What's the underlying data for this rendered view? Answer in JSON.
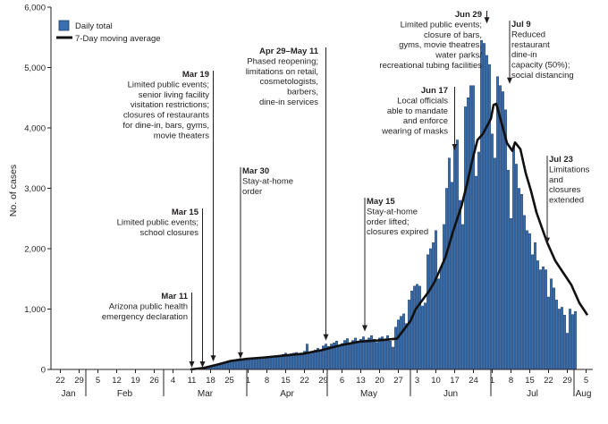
{
  "chart_data": {
    "type": "bar",
    "ylabel": "No. of cases",
    "ylim": [
      0,
      6000
    ],
    "yticks": [
      "0",
      "1,000",
      "2,000",
      "3,000",
      "4,000",
      "5,000",
      "6,000"
    ],
    "ytick_values": [
      0,
      1000,
      2000,
      3000,
      4000,
      5000,
      6000
    ],
    "x_start": "2020-01-19",
    "x_end": "2020-08-08",
    "xticks": [
      {
        "label": "22",
        "date": "2020-01-22"
      },
      {
        "label": "29",
        "date": "2020-01-29"
      },
      {
        "label": "5",
        "date": "2020-02-05"
      },
      {
        "label": "12",
        "date": "2020-02-12"
      },
      {
        "label": "19",
        "date": "2020-02-19"
      },
      {
        "label": "26",
        "date": "2020-02-26"
      },
      {
        "label": "4",
        "date": "2020-03-04"
      },
      {
        "label": "11",
        "date": "2020-03-11"
      },
      {
        "label": "18",
        "date": "2020-03-18"
      },
      {
        "label": "25",
        "date": "2020-03-25"
      },
      {
        "label": "1",
        "date": "2020-04-01"
      },
      {
        "label": "8",
        "date": "2020-04-08"
      },
      {
        "label": "15",
        "date": "2020-04-15"
      },
      {
        "label": "22",
        "date": "2020-04-22"
      },
      {
        "label": "29",
        "date": "2020-04-29"
      },
      {
        "label": "6",
        "date": "2020-05-06"
      },
      {
        "label": "13",
        "date": "2020-05-13"
      },
      {
        "label": "20",
        "date": "2020-05-20"
      },
      {
        "label": "27",
        "date": "2020-05-27"
      },
      {
        "label": "3",
        "date": "2020-06-03"
      },
      {
        "label": "10",
        "date": "2020-06-10"
      },
      {
        "label": "17",
        "date": "2020-06-17"
      },
      {
        "label": "24",
        "date": "2020-06-24"
      },
      {
        "label": "1",
        "date": "2020-07-01"
      },
      {
        "label": "8",
        "date": "2020-07-08"
      },
      {
        "label": "15",
        "date": "2020-07-15"
      },
      {
        "label": "22",
        "date": "2020-07-22"
      },
      {
        "label": "29",
        "date": "2020-07-29"
      },
      {
        "label": "5",
        "date": "2020-08-05"
      }
    ],
    "months": [
      {
        "label": "Jan",
        "start": "2020-01-19",
        "end": "2020-02-01"
      },
      {
        "label": "Feb",
        "start": "2020-02-01",
        "end": "2020-03-01"
      },
      {
        "label": "Mar",
        "start": "2020-03-01",
        "end": "2020-04-01"
      },
      {
        "label": "Apr",
        "start": "2020-04-01",
        "end": "2020-05-01"
      },
      {
        "label": "May",
        "start": "2020-05-01",
        "end": "2020-06-01"
      },
      {
        "label": "Jun",
        "start": "2020-06-01",
        "end": "2020-07-01"
      },
      {
        "label": "Jul",
        "start": "2020-07-01",
        "end": "2020-08-01"
      },
      {
        "label": "Aug",
        "start": "2020-08-01",
        "end": "2020-08-08"
      }
    ],
    "legend": {
      "bars": "Daily total",
      "line": "7-Day moving average"
    },
    "series": [
      {
        "name": "Daily total",
        "type": "bar",
        "start_date": "2020-03-11",
        "values": [
          2,
          3,
          5,
          6,
          10,
          18,
          25,
          40,
          55,
          65,
          75,
          90,
          110,
          130,
          140,
          150,
          160,
          170,
          180,
          150,
          160,
          170,
          180,
          190,
          170,
          180,
          200,
          210,
          190,
          200,
          210,
          220,
          200,
          230,
          250,
          270,
          240,
          260,
          270,
          280,
          250,
          270,
          300,
          420,
          260,
          290,
          320,
          350,
          300,
          390,
          420,
          380,
          420,
          440,
          470,
          390,
          430,
          480,
          510,
          430,
          480,
          520,
          470,
          500,
          540,
          490,
          520,
          560,
          500,
          450,
          520,
          540,
          480,
          560,
          470,
          370,
          700,
          820,
          880,
          920,
          760,
          1150,
          1300,
          1380,
          1410,
          1380,
          1050,
          1100,
          1900,
          2000,
          2100,
          2300,
          1500,
          1700,
          2400,
          3000,
          3500,
          3100,
          3700,
          3800,
          2800,
          2400,
          4350,
          4500,
          4700,
          4700,
          3200,
          3600,
          5450,
          5400,
          5200,
          5050,
          3900,
          3500,
          4850,
          4700,
          4600,
          4300,
          3300,
          2500,
          3700,
          3400,
          3000,
          2900,
          2550,
          2300,
          2250,
          1900,
          2100,
          1800,
          1650,
          1700,
          1650,
          1200,
          1500,
          1350,
          1150,
          1000,
          1030,
          900,
          600,
          1000,
          910,
          960
        ]
      },
      {
        "name": "7-Day moving average",
        "type": "line",
        "points": [
          [
            "2020-03-11",
            0
          ],
          [
            "2020-03-16",
            25
          ],
          [
            "2020-03-21",
            80
          ],
          [
            "2020-03-26",
            140
          ],
          [
            "2020-04-01",
            175
          ],
          [
            "2020-04-08",
            200
          ],
          [
            "2020-04-15",
            230
          ],
          [
            "2020-04-22",
            260
          ],
          [
            "2020-04-29",
            320
          ],
          [
            "2020-05-06",
            400
          ],
          [
            "2020-05-13",
            460
          ],
          [
            "2020-05-20",
            480
          ],
          [
            "2020-05-27",
            510
          ],
          [
            "2020-06-01",
            800
          ],
          [
            "2020-06-03",
            1000
          ],
          [
            "2020-06-08",
            1300
          ],
          [
            "2020-06-10",
            1450
          ],
          [
            "2020-06-14",
            1850
          ],
          [
            "2020-06-17",
            2300
          ],
          [
            "2020-06-20",
            2700
          ],
          [
            "2020-06-22",
            3050
          ],
          [
            "2020-06-24",
            3450
          ],
          [
            "2020-06-26",
            3800
          ],
          [
            "2020-06-28",
            3900
          ],
          [
            "2020-07-01",
            4150
          ],
          [
            "2020-07-02",
            4380
          ],
          [
            "2020-07-03",
            4400
          ],
          [
            "2020-07-05",
            4080
          ],
          [
            "2020-07-07",
            3750
          ],
          [
            "2020-07-09",
            3620
          ],
          [
            "2020-07-10",
            3760
          ],
          [
            "2020-07-12",
            3650
          ],
          [
            "2020-07-14",
            3250
          ],
          [
            "2020-07-16",
            2950
          ],
          [
            "2020-07-18",
            2600
          ],
          [
            "2020-07-20",
            2350
          ],
          [
            "2020-07-22",
            2100
          ],
          [
            "2020-07-25",
            1800
          ],
          [
            "2020-07-28",
            1600
          ],
          [
            "2020-07-31",
            1400
          ],
          [
            "2020-08-03",
            1100
          ],
          [
            "2020-08-06",
            900
          ]
        ]
      }
    ],
    "annotations": [
      {
        "id": "mar11",
        "date_label": "Mar 11",
        "lines": [
          "Arizona public health",
          "emergency declaration"
        ],
        "target_date": "2020-03-11",
        "arrow_value": 0
      },
      {
        "id": "mar15",
        "date_label": "Mar 15",
        "lines": [
          "Limited public events;",
          "school closures"
        ],
        "target_date": "2020-03-15",
        "arrow_value": 0
      },
      {
        "id": "mar19",
        "date_label": "Mar 19",
        "lines": [
          "Limited public events;",
          "senior living facility",
          "visitation restrictions;",
          "closures of restaurants",
          "for dine-in, bars, gyms,",
          "movie theaters"
        ],
        "target_date": "2020-03-19",
        "arrow_value": 100
      },
      {
        "id": "mar30",
        "date_label": "Mar 30",
        "lines": [
          "Stay-at-home",
          "order"
        ],
        "target_date": "2020-03-30",
        "arrow_value": 150
      },
      {
        "id": "apr29",
        "date_label": "Apr 29–May 11",
        "lines": [
          "Phased reopening;",
          "limitations on retail,",
          "cosmetologists,",
          "barbers,",
          "dine-in services"
        ],
        "target_date": "2020-04-30",
        "arrow_value": 450
      },
      {
        "id": "may15",
        "date_label": "May 15",
        "lines": [
          "Stay-at-home",
          "order lifted;",
          "closures expired"
        ],
        "target_date": "2020-05-15",
        "arrow_value": 600
      },
      {
        "id": "jun17",
        "date_label": "Jun 17",
        "lines": [
          "Local officials",
          "able to mandate",
          "and enforce",
          "wearing of masks"
        ],
        "target_date": "2020-06-17",
        "arrow_value": 3600
      },
      {
        "id": "jun29",
        "date_label": "Jun 29",
        "lines": [
          "Limited public events;",
          "closure of bars,",
          "gyms, movie theatres,",
          "water parks/",
          "recreational tubing facilities"
        ],
        "target_date": "2020-06-29",
        "arrow_value": 5700
      },
      {
        "id": "jul9",
        "date_label": "Jul 9",
        "lines": [
          "Reduced",
          "restaurant",
          "dine-in",
          "capacity (50%);",
          "social distancing"
        ],
        "target_date": "2020-07-09",
        "arrow_value": 4700
      },
      {
        "id": "jul23",
        "date_label": "Jul 23",
        "lines": [
          "Limitations",
          "and",
          "closures",
          "extended"
        ],
        "target_date": "2020-07-23",
        "arrow_value": 2050
      }
    ],
    "colors": {
      "bar_fill": "#3a6fb0",
      "bar_stroke": "#1b3a66",
      "line": "#111111",
      "axis": "#231f20"
    },
    "grid": false,
    "legend_position": "top-left"
  }
}
